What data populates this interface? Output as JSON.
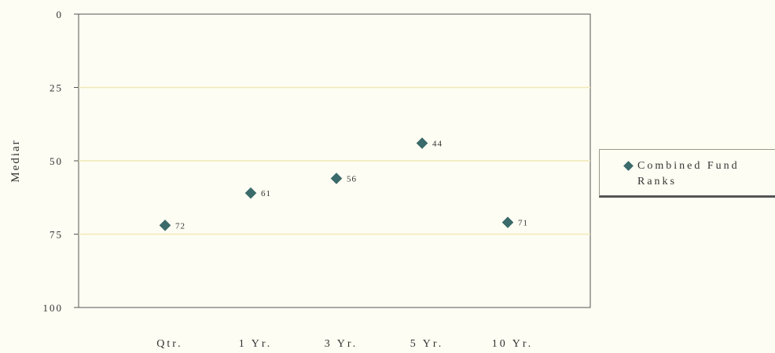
{
  "chart_data": {
    "type": "scatter",
    "categories": [
      "Qtr.",
      "1 Yr.",
      "3 Yr.",
      "5 Yr.",
      "10 Yr."
    ],
    "series": [
      {
        "name": "Combined Fund Ranks",
        "values": [
          72,
          61,
          56,
          44,
          71
        ]
      }
    ],
    "data_labels": [
      "72",
      "61",
      "56",
      "44",
      "71"
    ],
    "ylabel": "Mediar",
    "xlabel": "",
    "ylim": [
      0,
      100
    ],
    "y_inverted": true,
    "y_ticks": [
      "0",
      "25",
      "50",
      "75",
      "100"
    ],
    "grid": true,
    "legend_position": "right",
    "colors": {
      "marker": "#3b6b6b",
      "grid": "#f0e8b8",
      "axis": "#555555",
      "background": "#fdfdf3"
    }
  }
}
